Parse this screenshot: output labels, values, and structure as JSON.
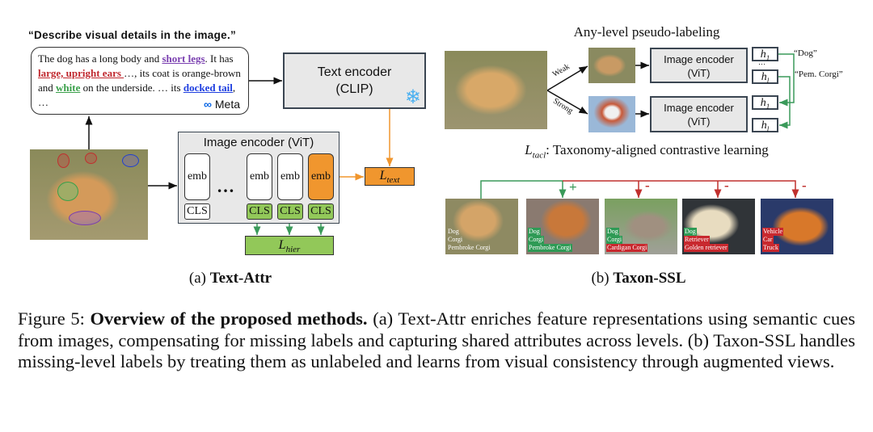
{
  "left": {
    "prompt": "“Describe visual details in the image.”",
    "description": {
      "t1": "The dog has a long body and ",
      "a1": "short legs",
      "t2": ". It has ",
      "a2": "large, upright ears ",
      "t3": "…, its coat is orange-brown and ",
      "a3": "white",
      "t4": " on the underside. … its ",
      "a4": "docked tail",
      "t5": ", …"
    },
    "meta_logo": "Meta",
    "text_encoder": {
      "line1": "Text encoder",
      "line2": "(CLIP)"
    },
    "image_encoder_title": "Image encoder (ViT)",
    "emb": "emb",
    "cls": "CLS",
    "dots": "…",
    "l_text": {
      "base": "L",
      "sub": "text"
    },
    "l_hier": {
      "base": "L",
      "sub": "hier"
    },
    "caption_prefix": "(a) ",
    "caption_bold": "Text-Attr"
  },
  "right": {
    "title": "Any-level pseudo-labeling",
    "weak": "Weak",
    "strong": "Strong",
    "encoder": {
      "line1": "Image encoder",
      "line2": "(ViT)"
    },
    "h1": {
      "base": "h",
      "sub": "1"
    },
    "hl": {
      "base": "h",
      "sub": "l"
    },
    "vdots": "⋯",
    "label_dog": "“Dog”",
    "label_corgi": "“Pem. Corgi”",
    "tacl": {
      "base": "L",
      "sub": "tacl",
      "text": ": Taxonomy-aligned contrastive learning"
    },
    "signs": [
      "+",
      "-",
      "-",
      "-"
    ],
    "images": [
      {
        "labels": [
          "Dog",
          "Corgi",
          "Pembroke Corgi"
        ],
        "tags": [
          "plain",
          "plain",
          "plain"
        ]
      },
      {
        "labels": [
          "Dog",
          "Corgi",
          "Pembroke Corgi"
        ],
        "tags": [
          "g",
          "g",
          "g"
        ]
      },
      {
        "labels": [
          "Dog",
          "Corgi",
          "Cardigan Corgi"
        ],
        "tags": [
          "g",
          "g",
          "r"
        ]
      },
      {
        "labels": [
          "Dog",
          "Retriever",
          "Golden retriever"
        ],
        "tags": [
          "g",
          "r",
          "r"
        ]
      },
      {
        "labels": [
          "Vehicle",
          "Car",
          "Truck"
        ],
        "tags": [
          "r",
          "r",
          "r"
        ]
      }
    ],
    "caption_prefix": "(b) ",
    "caption_bold": "Taxon-SSL"
  },
  "figure_caption": {
    "label": "Figure 5: ",
    "bold": "Overview of the proposed methods.",
    "text": " (a) Text-Attr enriches feature representations using semantic cues from images, compensating for missing labels and capturing shared attributes across levels. (b) Taxon-SSL handles missing-level labels by treating them as unlabeled and learns from visual consistency through augmented views."
  },
  "colors": {
    "orange": "#f0962e",
    "green": "#92c859",
    "arrow_green": "#3a9a5a",
    "arrow_red": "#c0302e",
    "purple": "#7a3fb0",
    "red": "#c0282e",
    "attr_green": "#3aa04a",
    "blue": "#1f3fe0"
  }
}
